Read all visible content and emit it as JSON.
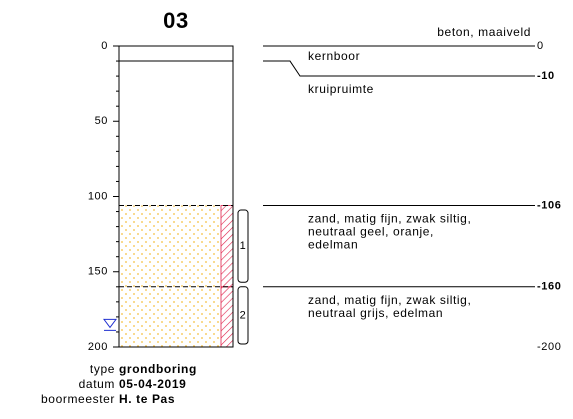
{
  "title": "03",
  "depth_axis": {
    "range": [
      0,
      200
    ],
    "ticks": [
      0,
      50,
      100,
      150,
      200
    ],
    "minor_ticks": [
      10,
      20,
      30,
      40,
      60,
      70,
      80,
      90,
      110,
      120,
      130,
      140,
      160,
      170,
      180,
      190
    ]
  },
  "surface_label": "beton, maaiveld",
  "boundaries": [
    {
      "depth": 0,
      "label": "0"
    },
    {
      "depth": 10,
      "label": "-10"
    },
    {
      "depth": 106,
      "label": "-106"
    },
    {
      "depth": 160,
      "label": "-160"
    },
    {
      "depth": 200,
      "label": "-200"
    }
  ],
  "layers": [
    {
      "top": 0,
      "bottom": 10,
      "description": [
        "kernboor"
      ],
      "color": null
    },
    {
      "top": 10,
      "bottom": 106,
      "description": [
        "kruipruimte"
      ],
      "color": null
    },
    {
      "top": 106,
      "bottom": 160,
      "description": [
        "zand, matig fijn, zwak siltig,",
        "neutraal geel, oranje,",
        "edelman"
      ],
      "color": "#f5c040"
    },
    {
      "top": 160,
      "bottom": 200,
      "description": [
        "zand, matig fijn, zwak siltig,",
        "neutraal grijs, edelman"
      ],
      "color": "#f5c040"
    }
  ],
  "samples": [
    {
      "label": "1",
      "top": 109,
      "bottom": 157
    },
    {
      "label": "2",
      "top": 160,
      "bottom": 198
    }
  ],
  "water_level": 185,
  "footer": [
    {
      "key": "type",
      "value": "grondboring"
    },
    {
      "key": "datum",
      "value": "05-04-2019"
    },
    {
      "key": "boormeester",
      "value": "H. te Pas"
    }
  ]
}
